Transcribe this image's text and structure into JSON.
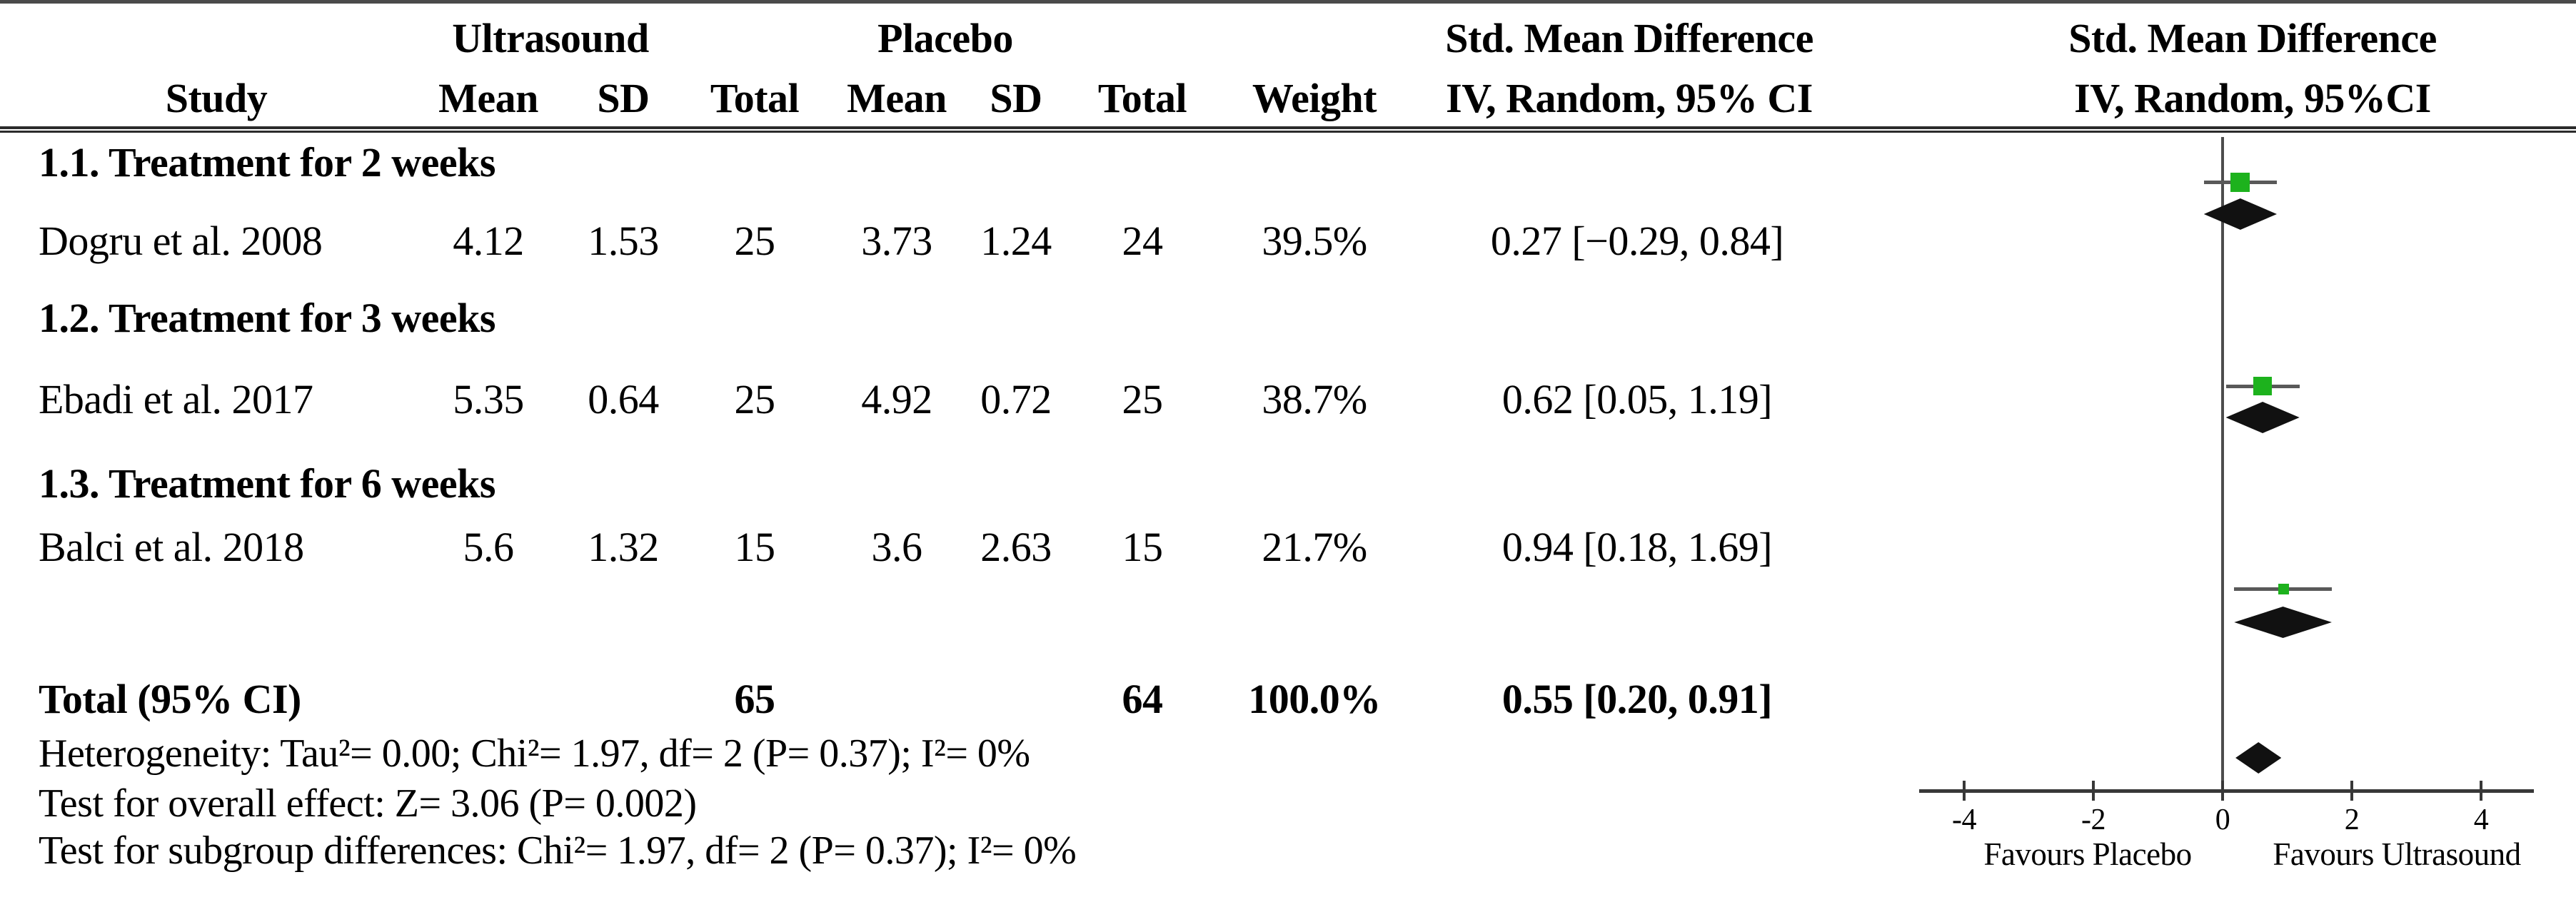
{
  "figure": {
    "headers": {
      "study": "Study",
      "treatment_group": "Ultrasound",
      "control_group": "Placebo",
      "mean": "Mean",
      "sd": "SD",
      "total": "Total",
      "weight": "Weight",
      "smd_title": "Std. Mean Difference",
      "smd_subtitle": "IV, Random, 95% CI",
      "plot_title": "Std. Mean Difference",
      "plot_subtitle": "IV, Random, 95%CI"
    },
    "subgroups": [
      {
        "heading": "1.1. Treatment for 2 weeks",
        "study": {
          "name": "Dogru et al. 2008",
          "t_mean": "4.12",
          "t_sd": "1.53",
          "t_total": "25",
          "c_mean": "3.73",
          "c_sd": "1.24",
          "c_total": "24",
          "weight": "39.5%",
          "smd_ci": "0.27 [−0.29, 0.84]"
        }
      },
      {
        "heading": "1.2. Treatment for 3 weeks",
        "study": {
          "name": "Ebadi et al. 2017",
          "t_mean": "5.35",
          "t_sd": "0.64",
          "t_total": "25",
          "c_mean": "4.92",
          "c_sd": "0.72",
          "c_total": "25",
          "weight": "38.7%",
          "smd_ci": "0.62 [0.05, 1.19]"
        }
      },
      {
        "heading": "1.3. Treatment for 6 weeks",
        "study": {
          "name": "Balci et al. 2018",
          "t_mean": "5.6",
          "t_sd": "1.32",
          "t_total": "15",
          "c_mean": "3.6",
          "c_sd": "2.63",
          "c_total": "15",
          "weight": "21.7%",
          "smd_ci": "0.94 [0.18, 1.69]"
        }
      }
    ],
    "total": {
      "label": "Total (95% CI)",
      "t_total": "65",
      "c_total": "64",
      "weight": "100.0%",
      "smd_ci": "0.55 [0.20, 0.91]"
    },
    "footnotes": {
      "heterogeneity": "Heterogeneity: Tau²= 0.00; Chi²= 1.97, df= 2 (P= 0.37); I²= 0%",
      "overall_effect": "Test for overall effect: Z= 3.06 (P= 0.002)",
      "subgroup_differences": "Test for subgroup differences: Chi²= 1.97, df= 2 (P= 0.37); I²= 0%"
    }
  },
  "chart_data": {
    "type": "forest",
    "effect_measure": "Std. Mean Difference (IV, Random, 95% CI)",
    "x_axis": {
      "ticks": [
        -4,
        -2,
        0,
        2,
        4
      ],
      "tick_labels": [
        "-4",
        "-2",
        "0",
        "2",
        "4"
      ],
      "range": [
        -5,
        5
      ],
      "zero_line": 0
    },
    "favours_left": "Favours Placebo",
    "favours_right": "Favours Ultrasound",
    "studies": [
      {
        "name": "Dogru et al. 2008",
        "smd": 0.27,
        "ci_low": -0.29,
        "ci_high": 0.84,
        "weight_pct": 39.5
      },
      {
        "name": "Ebadi et al. 2017",
        "smd": 0.62,
        "ci_low": 0.05,
        "ci_high": 1.19,
        "weight_pct": 38.7
      },
      {
        "name": "Balci et al. 2018",
        "smd": 0.94,
        "ci_low": 0.18,
        "ci_high": 1.69,
        "weight_pct": 21.7
      }
    ],
    "subgroup_totals": [
      {
        "label": "1.1. Treatment for 2 weeks",
        "smd": 0.27,
        "ci_low": -0.29,
        "ci_high": 0.84
      },
      {
        "label": "1.2. Treatment for 3 weeks",
        "smd": 0.62,
        "ci_low": 0.05,
        "ci_high": 1.19
      },
      {
        "label": "1.3. Treatment for 6 weeks",
        "smd": 0.94,
        "ci_low": 0.18,
        "ci_high": 1.69
      }
    ],
    "overall": {
      "smd": 0.55,
      "ci_low": 0.2,
      "ci_high": 0.91
    },
    "colors": {
      "study_marker": "#1DB21D",
      "diamond": "#111111",
      "ci_line": "#595959",
      "axis": "#3c3c3c"
    }
  }
}
